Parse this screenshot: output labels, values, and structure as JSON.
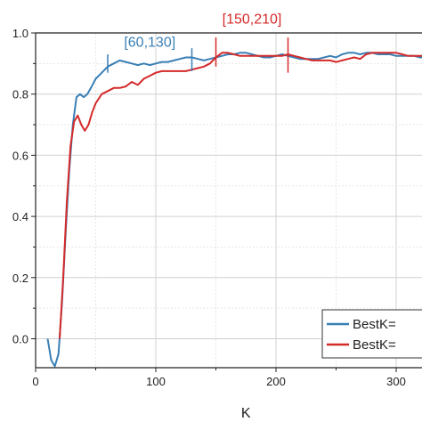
{
  "chart_data": {
    "type": "line",
    "xlabel": "K",
    "ylabel": "",
    "xlim": [
      0,
      335
    ],
    "ylim": [
      -0.1,
      1.0
    ],
    "xticks": [
      0,
      100,
      200,
      300
    ],
    "yticks": [
      0.0,
      0.2,
      0.4,
      0.6,
      0.8,
      1.0
    ],
    "xtick_labels": [
      "0",
      "100",
      "200",
      "300"
    ],
    "ytick_labels": [
      "0.0",
      "0.2",
      "0.4",
      "0.6",
      "0.8",
      "1.0"
    ],
    "grid": true,
    "legend_position": "bottom-right",
    "series": [
      {
        "name": "BestK=",
        "color": "#3a7fb4",
        "points": [
          [
            10,
            0.0
          ],
          [
            13,
            -0.07
          ],
          [
            16,
            -0.09
          ],
          [
            19,
            -0.05
          ],
          [
            22,
            0.12
          ],
          [
            25,
            0.35
          ],
          [
            28,
            0.55
          ],
          [
            31,
            0.7
          ],
          [
            34,
            0.79
          ],
          [
            37,
            0.8
          ],
          [
            40,
            0.79
          ],
          [
            43,
            0.8
          ],
          [
            46,
            0.82
          ],
          [
            50,
            0.85
          ],
          [
            55,
            0.87
          ],
          [
            60,
            0.89
          ],
          [
            65,
            0.9
          ],
          [
            70,
            0.91
          ],
          [
            75,
            0.905
          ],
          [
            80,
            0.9
          ],
          [
            85,
            0.895
          ],
          [
            90,
            0.9
          ],
          [
            95,
            0.895
          ],
          [
            100,
            0.9
          ],
          [
            105,
            0.905
          ],
          [
            110,
            0.905
          ],
          [
            115,
            0.91
          ],
          [
            120,
            0.915
          ],
          [
            125,
            0.92
          ],
          [
            130,
            0.92
          ],
          [
            135,
            0.915
          ],
          [
            140,
            0.91
          ],
          [
            145,
            0.915
          ],
          [
            150,
            0.92
          ],
          [
            155,
            0.925
          ],
          [
            160,
            0.93
          ],
          [
            165,
            0.93
          ],
          [
            170,
            0.935
          ],
          [
            175,
            0.935
          ],
          [
            180,
            0.93
          ],
          [
            185,
            0.925
          ],
          [
            190,
            0.92
          ],
          [
            195,
            0.92
          ],
          [
            200,
            0.925
          ],
          [
            205,
            0.93
          ],
          [
            210,
            0.925
          ],
          [
            215,
            0.92
          ],
          [
            220,
            0.915
          ],
          [
            225,
            0.915
          ],
          [
            230,
            0.915
          ],
          [
            235,
            0.915
          ],
          [
            240,
            0.92
          ],
          [
            245,
            0.925
          ],
          [
            250,
            0.92
          ],
          [
            255,
            0.93
          ],
          [
            260,
            0.935
          ],
          [
            265,
            0.935
          ],
          [
            270,
            0.93
          ],
          [
            275,
            0.935
          ],
          [
            280,
            0.935
          ],
          [
            285,
            0.93
          ],
          [
            290,
            0.93
          ],
          [
            295,
            0.93
          ],
          [
            300,
            0.925
          ],
          [
            305,
            0.925
          ],
          [
            310,
            0.925
          ],
          [
            315,
            0.925
          ],
          [
            320,
            0.92
          ],
          [
            325,
            0.92
          ],
          [
            330,
            0.915
          ],
          [
            335,
            0.915
          ]
        ]
      },
      {
        "name": "BestK=",
        "color": "#d42a2a",
        "points": [
          [
            20,
            0.0
          ],
          [
            23,
            0.2
          ],
          [
            26,
            0.45
          ],
          [
            29,
            0.63
          ],
          [
            32,
            0.71
          ],
          [
            35,
            0.73
          ],
          [
            38,
            0.7
          ],
          [
            41,
            0.68
          ],
          [
            44,
            0.7
          ],
          [
            47,
            0.74
          ],
          [
            50,
            0.77
          ],
          [
            55,
            0.8
          ],
          [
            60,
            0.81
          ],
          [
            65,
            0.82
          ],
          [
            70,
            0.82
          ],
          [
            75,
            0.825
          ],
          [
            80,
            0.84
          ],
          [
            85,
            0.83
          ],
          [
            90,
            0.85
          ],
          [
            95,
            0.86
          ],
          [
            100,
            0.87
          ],
          [
            105,
            0.875
          ],
          [
            110,
            0.875
          ],
          [
            115,
            0.875
          ],
          [
            120,
            0.875
          ],
          [
            125,
            0.875
          ],
          [
            130,
            0.88
          ],
          [
            135,
            0.885
          ],
          [
            140,
            0.89
          ],
          [
            145,
            0.9
          ],
          [
            150,
            0.92
          ],
          [
            155,
            0.935
          ],
          [
            160,
            0.935
          ],
          [
            165,
            0.93
          ],
          [
            170,
            0.925
          ],
          [
            175,
            0.925
          ],
          [
            180,
            0.925
          ],
          [
            185,
            0.925
          ],
          [
            190,
            0.925
          ],
          [
            195,
            0.925
          ],
          [
            200,
            0.925
          ],
          [
            205,
            0.925
          ],
          [
            210,
            0.93
          ],
          [
            215,
            0.925
          ],
          [
            220,
            0.92
          ],
          [
            225,
            0.915
          ],
          [
            230,
            0.91
          ],
          [
            235,
            0.91
          ],
          [
            240,
            0.91
          ],
          [
            245,
            0.91
          ],
          [
            250,
            0.905
          ],
          [
            255,
            0.91
          ],
          [
            260,
            0.915
          ],
          [
            265,
            0.92
          ],
          [
            270,
            0.915
          ],
          [
            275,
            0.93
          ],
          [
            280,
            0.935
          ],
          [
            285,
            0.935
          ],
          [
            290,
            0.935
          ],
          [
            295,
            0.935
          ],
          [
            300,
            0.935
          ],
          [
            305,
            0.93
          ],
          [
            310,
            0.925
          ],
          [
            315,
            0.925
          ],
          [
            320,
            0.925
          ],
          [
            325,
            0.925
          ],
          [
            330,
            0.925
          ],
          [
            335,
            0.925
          ]
        ]
      }
    ],
    "annotations": [
      {
        "text": "[60,130]",
        "range": [
          60,
          130
        ],
        "color": "#3a7fb4"
      },
      {
        "text": "[150,210]",
        "range": [
          150,
          210
        ],
        "color": "#d42a2a"
      }
    ]
  }
}
